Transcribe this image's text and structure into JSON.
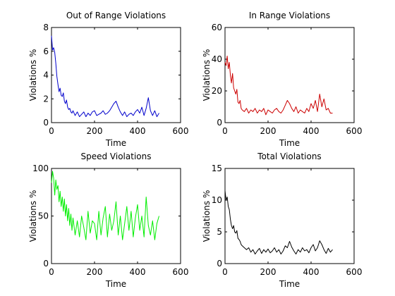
{
  "chart_data": [
    {
      "type": "line",
      "title": "Out of Range Violations",
      "xlabel": "Time",
      "ylabel": "Violations %",
      "xlim": [
        0,
        600
      ],
      "ylim": [
        0,
        8
      ],
      "xticks": [
        0,
        200,
        400,
        600
      ],
      "yticks": [
        0,
        2,
        4,
        6,
        8
      ],
      "xtick_labels": [
        "0",
        "200",
        "400",
        "600"
      ],
      "ytick_labels": [
        "0",
        "2",
        "4",
        "6",
        "8"
      ],
      "grid": false,
      "series": [
        {
          "color": "#0000cc",
          "x": [
            0,
            5,
            10,
            15,
            20,
            25,
            30,
            35,
            40,
            45,
            50,
            55,
            60,
            65,
            70,
            75,
            80,
            85,
            90,
            95,
            100,
            110,
            120,
            130,
            140,
            150,
            160,
            170,
            180,
            190,
            200,
            210,
            220,
            230,
            240,
            250,
            260,
            270,
            280,
            290,
            300,
            310,
            320,
            330,
            340,
            350,
            360,
            370,
            380,
            390,
            400,
            410,
            420,
            430,
            440,
            450,
            460,
            470,
            480,
            490,
            500
          ],
          "y": [
            7.3,
            6.1,
            6.3,
            5.9,
            5.0,
            3.9,
            3.2,
            2.6,
            2.9,
            2.3,
            2.2,
            2.5,
            1.8,
            1.6,
            1.9,
            1.3,
            1.1,
            1.2,
            0.9,
            0.8,
            1.0,
            0.6,
            0.9,
            0.5,
            0.7,
            0.9,
            0.5,
            0.8,
            0.6,
            0.9,
            1.0,
            0.6,
            0.7,
            0.8,
            1.0,
            0.7,
            0.8,
            1.0,
            1.3,
            1.6,
            1.8,
            1.3,
            0.9,
            0.6,
            0.9,
            0.5,
            0.7,
            0.8,
            0.6,
            0.9,
            1.1,
            0.8,
            1.3,
            0.6,
            1.2,
            2.1,
            1.0,
            0.6,
            1.0,
            0.5,
            0.8
          ]
        }
      ]
    },
    {
      "type": "line",
      "title": "In Range Violations",
      "xlabel": "Time",
      "ylabel": "Violations %",
      "xlim": [
        0,
        600
      ],
      "ylim": [
        0,
        60
      ],
      "xticks": [
        0,
        200,
        400,
        600
      ],
      "yticks": [
        0,
        20,
        40,
        60
      ],
      "xtick_labels": [
        "0",
        "200",
        "400",
        "600"
      ],
      "ytick_labels": [
        "0",
        "20",
        "40",
        "60"
      ],
      "grid": false,
      "series": [
        {
          "color": "#cc0000",
          "x": [
            0,
            5,
            10,
            15,
            20,
            25,
            30,
            35,
            40,
            45,
            50,
            55,
            60,
            65,
            70,
            75,
            80,
            90,
            100,
            110,
            120,
            130,
            140,
            150,
            160,
            170,
            180,
            190,
            200,
            210,
            220,
            230,
            240,
            250,
            260,
            270,
            280,
            290,
            300,
            310,
            320,
            330,
            340,
            350,
            360,
            370,
            380,
            390,
            400,
            410,
            420,
            430,
            440,
            450,
            460,
            470,
            480,
            490,
            500
          ],
          "y": [
            38,
            36,
            42,
            34,
            38,
            30,
            25,
            31,
            22,
            20,
            18,
            21,
            13,
            12,
            14,
            9,
            8,
            7,
            9,
            6,
            8,
            7,
            9,
            6,
            8,
            7,
            9,
            5,
            8,
            7,
            6,
            8,
            9,
            7,
            6,
            8,
            11,
            14,
            12,
            9,
            7,
            10,
            6,
            8,
            7,
            6,
            9,
            7,
            12,
            9,
            14,
            7,
            18,
            10,
            15,
            8,
            9,
            6,
            6
          ]
        }
      ]
    },
    {
      "type": "line",
      "title": "Speed Violations",
      "xlabel": "Time",
      "ylabel": "Violations %",
      "xlim": [
        0,
        600
      ],
      "ylim": [
        0,
        100
      ],
      "xticks": [
        0,
        200,
        400,
        600
      ],
      "yticks": [
        0,
        50,
        100
      ],
      "xtick_labels": [
        "0",
        "200",
        "400",
        "600"
      ],
      "ytick_labels": [
        "0",
        "50",
        "100"
      ],
      "grid": false,
      "series": [
        {
          "color": "#00ee00",
          "x": [
            0,
            5,
            10,
            15,
            20,
            25,
            30,
            35,
            40,
            45,
            50,
            55,
            60,
            65,
            70,
            75,
            80,
            85,
            90,
            95,
            100,
            110,
            120,
            130,
            140,
            150,
            160,
            170,
            180,
            190,
            200,
            210,
            220,
            230,
            240,
            250,
            260,
            270,
            280,
            290,
            300,
            310,
            320,
            330,
            340,
            350,
            360,
            370,
            380,
            390,
            400,
            410,
            420,
            430,
            440,
            450,
            460,
            470,
            480,
            490,
            500
          ],
          "y": [
            85,
            97,
            90,
            72,
            88,
            78,
            82,
            65,
            76,
            60,
            70,
            55,
            68,
            50,
            62,
            45,
            58,
            40,
            52,
            35,
            48,
            30,
            45,
            28,
            50,
            38,
            25,
            55,
            32,
            45,
            42,
            25,
            55,
            30,
            48,
            60,
            28,
            52,
            35,
            45,
            65,
            30,
            50,
            25,
            42,
            60,
            35,
            55,
            28,
            48,
            62,
            35,
            50,
            28,
            70,
            40,
            30,
            45,
            25,
            42,
            50
          ]
        }
      ]
    },
    {
      "type": "line",
      "title": "Total Violations",
      "xlabel": "Time",
      "ylabel": "Violations %",
      "xlim": [
        0,
        600
      ],
      "ylim": [
        0,
        15
      ],
      "xticks": [
        0,
        200,
        400,
        600
      ],
      "yticks": [
        0,
        5,
        10,
        15
      ],
      "xtick_labels": [
        "0",
        "200",
        "400",
        "600"
      ],
      "ytick_labels": [
        "0",
        "5",
        "10",
        "15"
      ],
      "grid": false,
      "series": [
        {
          "color": "#000000",
          "x": [
            0,
            5,
            10,
            15,
            20,
            25,
            30,
            35,
            40,
            45,
            50,
            55,
            60,
            65,
            70,
            75,
            80,
            90,
            100,
            110,
            120,
            130,
            140,
            150,
            160,
            170,
            180,
            190,
            200,
            210,
            220,
            230,
            240,
            250,
            260,
            270,
            280,
            290,
            300,
            310,
            320,
            330,
            340,
            350,
            360,
            370,
            380,
            390,
            400,
            410,
            420,
            430,
            440,
            450,
            460,
            470,
            480,
            490,
            500
          ],
          "y": [
            11.5,
            10,
            10.5,
            9,
            8.5,
            7,
            6,
            5.5,
            6,
            5,
            4.8,
            5.2,
            4,
            3.8,
            3.5,
            3,
            2.8,
            2.5,
            2.2,
            2.5,
            1.8,
            2.2,
            1.5,
            2.0,
            2.4,
            1.6,
            2.2,
            1.8,
            2.3,
            1.7,
            2.0,
            2.5,
            1.8,
            2.2,
            1.5,
            2.0,
            2.8,
            2.5,
            3.5,
            2.6,
            2.0,
            1.5,
            2.2,
            1.8,
            2.5,
            2.0,
            2.2,
            1.7,
            2.5,
            3.0,
            2.0,
            2.5,
            3.6,
            3.0,
            2.2,
            1.6,
            2.4,
            1.8,
            2.2
          ]
        }
      ]
    }
  ]
}
